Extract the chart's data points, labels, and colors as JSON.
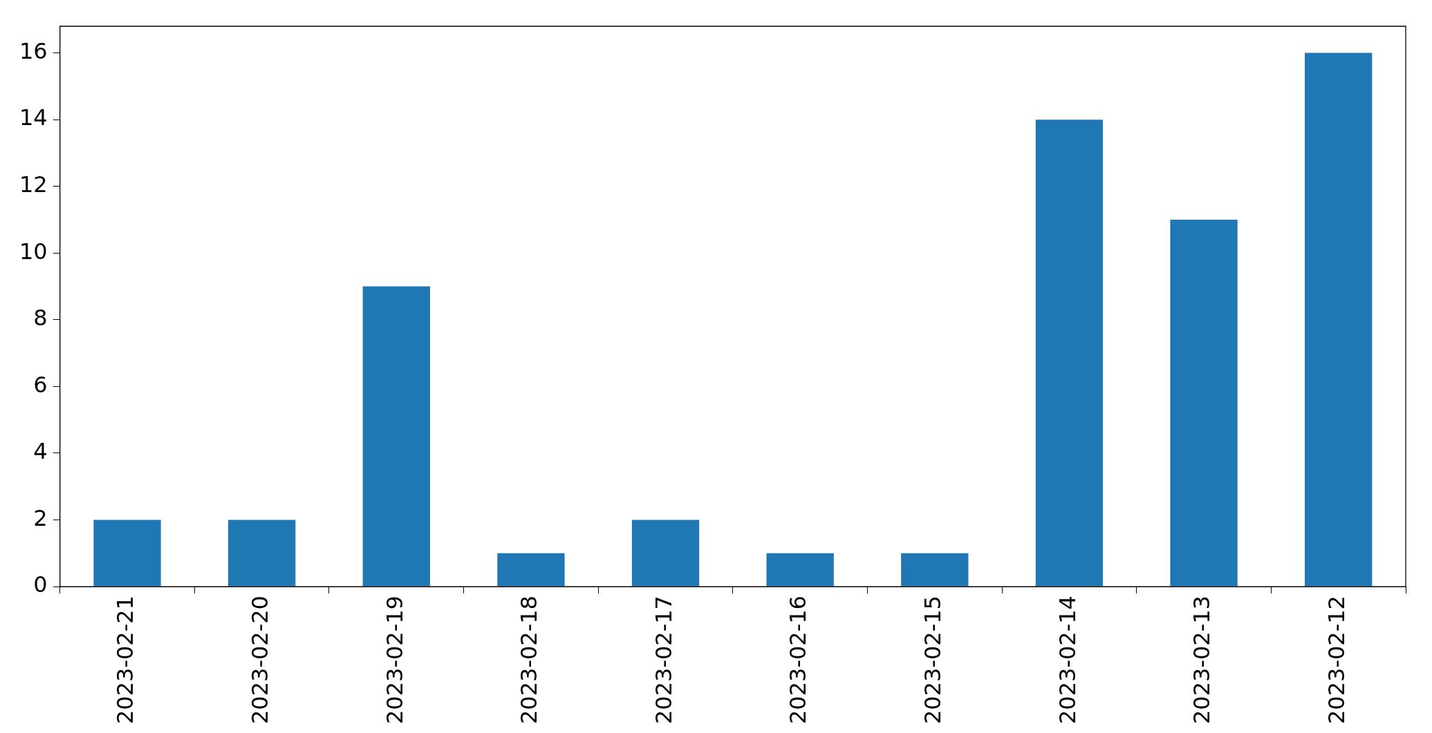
{
  "chart_data": {
    "type": "bar",
    "categories": [
      "2023-02-21",
      "2023-02-20",
      "2023-02-19",
      "2023-02-18",
      "2023-02-17",
      "2023-02-16",
      "2023-02-15",
      "2023-02-14",
      "2023-02-13",
      "2023-02-12"
    ],
    "values": [
      2,
      2,
      9,
      1,
      2,
      1,
      1,
      14,
      11,
      16
    ],
    "color": "#1f77b4",
    "ylim": [
      0,
      16.8
    ],
    "yticks": [
      0,
      2,
      4,
      6,
      8,
      10,
      12,
      14,
      16
    ],
    "grid": false,
    "legend": false
  }
}
